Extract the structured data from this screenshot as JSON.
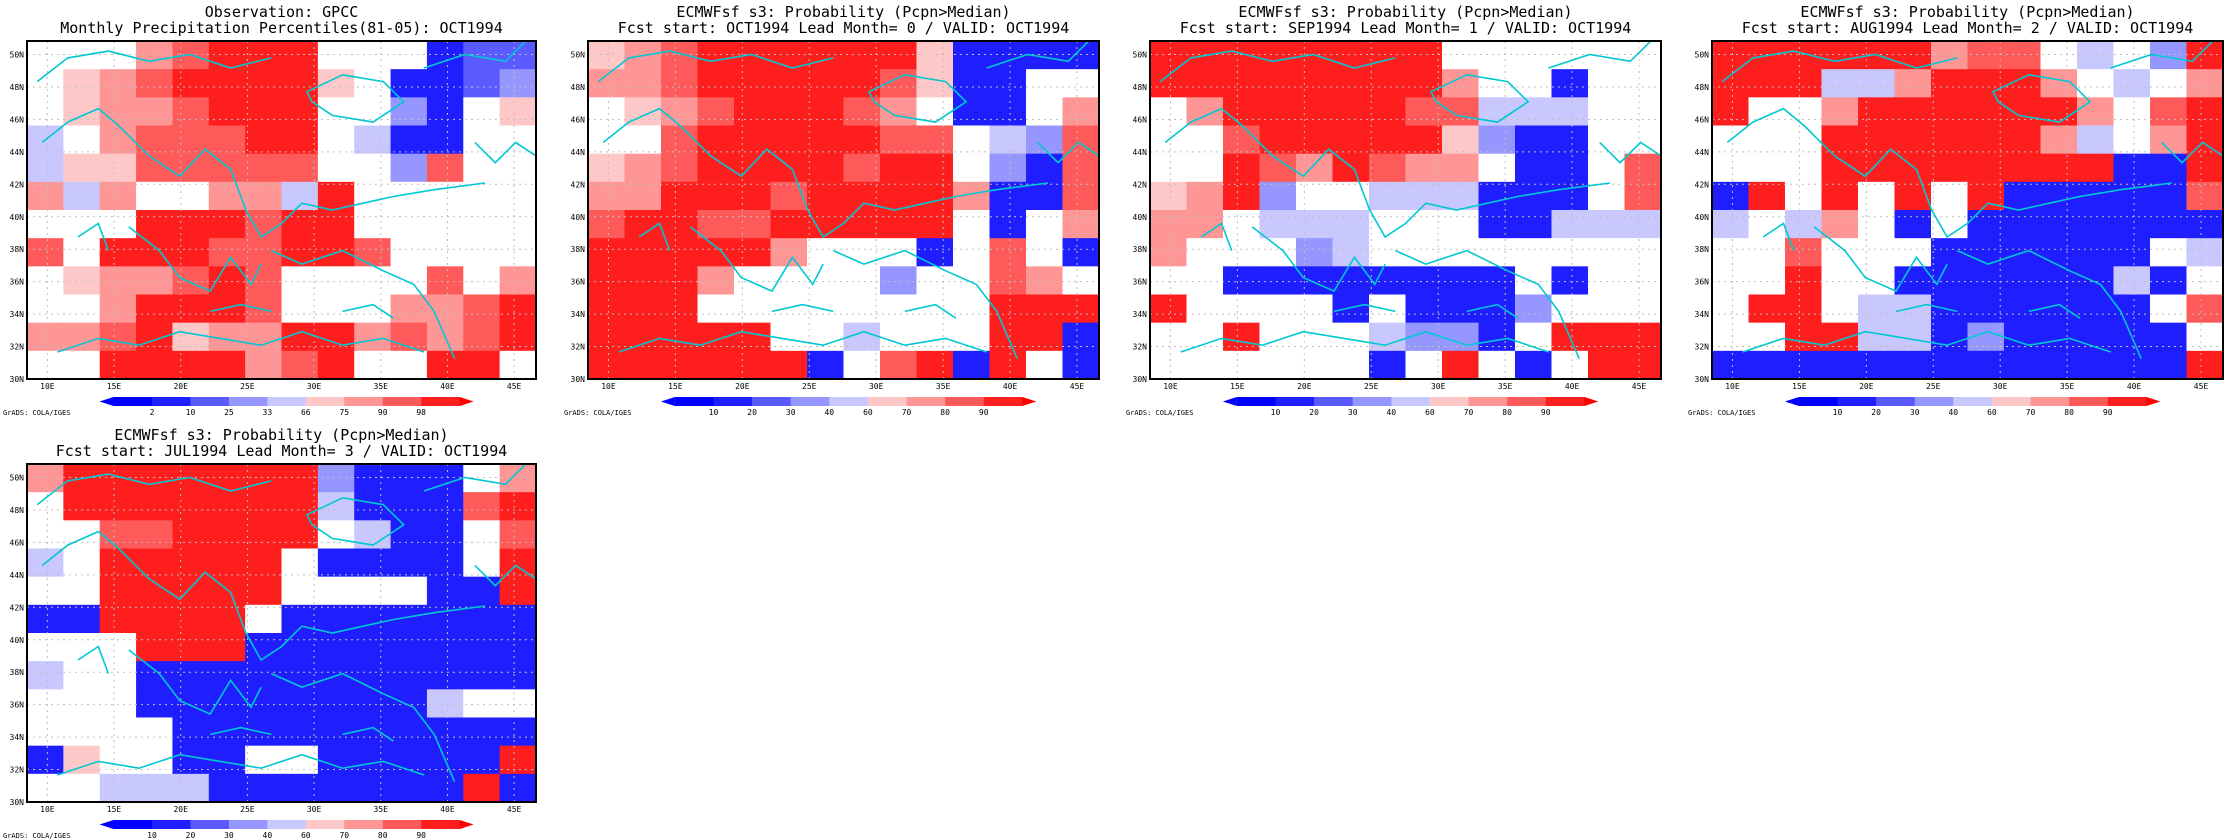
{
  "colors": {
    "ramp": [
      "#0000ff",
      "#1e1eff",
      "#5a5aff",
      "#9696ff",
      "#c8c8ff",
      "#ffffff",
      "#ffc8c8",
      "#ff9696",
      "#ff5a5a",
      "#ff1e1e",
      "#ff0000"
    ],
    "coast": "#00c8d2",
    "grid": "#bfbfbf",
    "frame": "#000000"
  },
  "map": {
    "lon_labels": [
      "10E",
      "15E",
      "20E",
      "25E",
      "30E",
      "35E",
      "40E",
      "45E"
    ],
    "lat_labels": [
      "50N",
      "48N",
      "46N",
      "44N",
      "42N",
      "40N",
      "38N",
      "36N",
      "34N",
      "32N",
      "30N"
    ]
  },
  "footer_credit": "GrADS: COLA/IGES",
  "panels": [
    {
      "title1": "Observation: GPCC",
      "title2": "Monthly Precipitation Percentiles(81-05): OCT1994",
      "colorbar": [
        "2",
        "10",
        "25",
        "33",
        "66",
        "75",
        "90",
        "98"
      ],
      "cells": [
        "55578999555122",
        "56789999651123",
        "56778999553156",
        "45788899541155",
        "46688888553855",
        "74755774955555",
        "55599989955555",
        "85999889985555",
        "56778985555857",
        "55799985557789",
        "77896779978789",
        "55999978955995"
      ]
    },
    {
      "title1": "ECMWFsf s3: Probability (Pcpn>Median)",
      "title2": "Fcst start: OCT1994  Lead Month= 0 / VALID: OCT1994",
      "colorbar": [
        "10",
        "20",
        "30",
        "40",
        "60",
        "70",
        "80",
        "90"
      ],
      "cells": [
        "67899999961111",
        "77899999861155",
        "56789998751157",
        "55899999885438",
        "67899998995318",
        "77999899997118",
        "89988999995157",
        "99999755515851",
        "99975555355875",
        "99955555555999",
        "99999554555991",
        "99999915891951"
      ]
    },
    {
      "title1": "ECMWFsf s3: Probability (Pcpn>Median)",
      "title2": "Fcst start: SEP1994  Lead Month= 1 / VALID: OCT1994",
      "colorbar": [
        "10",
        "20",
        "30",
        "40",
        "60",
        "70",
        "80",
        "90"
      ],
      "cells": [
        "99999999555555",
        "99999999755155",
        "57999998844455",
        "55899999631155",
        "55987987751158",
        "67935544411158",
        "77544455511444",
        "75553455555555",
        "55111111115155",
        "95555151113555",
        "55955543315999",
        "55555515951599"
      ]
    },
    {
      "title1": "ECMWFsf s3: Probability (Pcpn>Median)",
      "title2": "Fcst start: AUG1994  Lead Month= 2 / VALID: OCT1994",
      "colorbar": [
        "10",
        "20",
        "30",
        "40",
        "60",
        "70",
        "80",
        "90"
      ],
      "cells": [
        "99999978854539",
        "99944799975457",
        "95579999997589",
        "55599999974579",
        "55599999999119",
        "19595959111118",
        "45475151111111",
        "55855511111154",
        "55955111111415",
        "59954411111158",
        "55994413111115",
        "11111111111119"
      ]
    },
    {
      "title1": "ECMWFsf s3: Probability (Pcpn>Median)",
      "title2": "Fcst start: JUL1994  Lead Month= 3 / VALID: OCT1994",
      "colorbar": [
        "10",
        "20",
        "30",
        "40",
        "60",
        "70",
        "80",
        "90"
      ],
      "cells": [
        "79999999311157",
        "59999999411189",
        "55889999541158",
        "45999995111159",
        "55999995555119",
        "11999951111111",
        "55599911111111",
        "45511111111111",
        "55511111111455",
        "55551111111111",
        "16551155111119",
        "55444111111191"
      ]
    }
  ]
}
